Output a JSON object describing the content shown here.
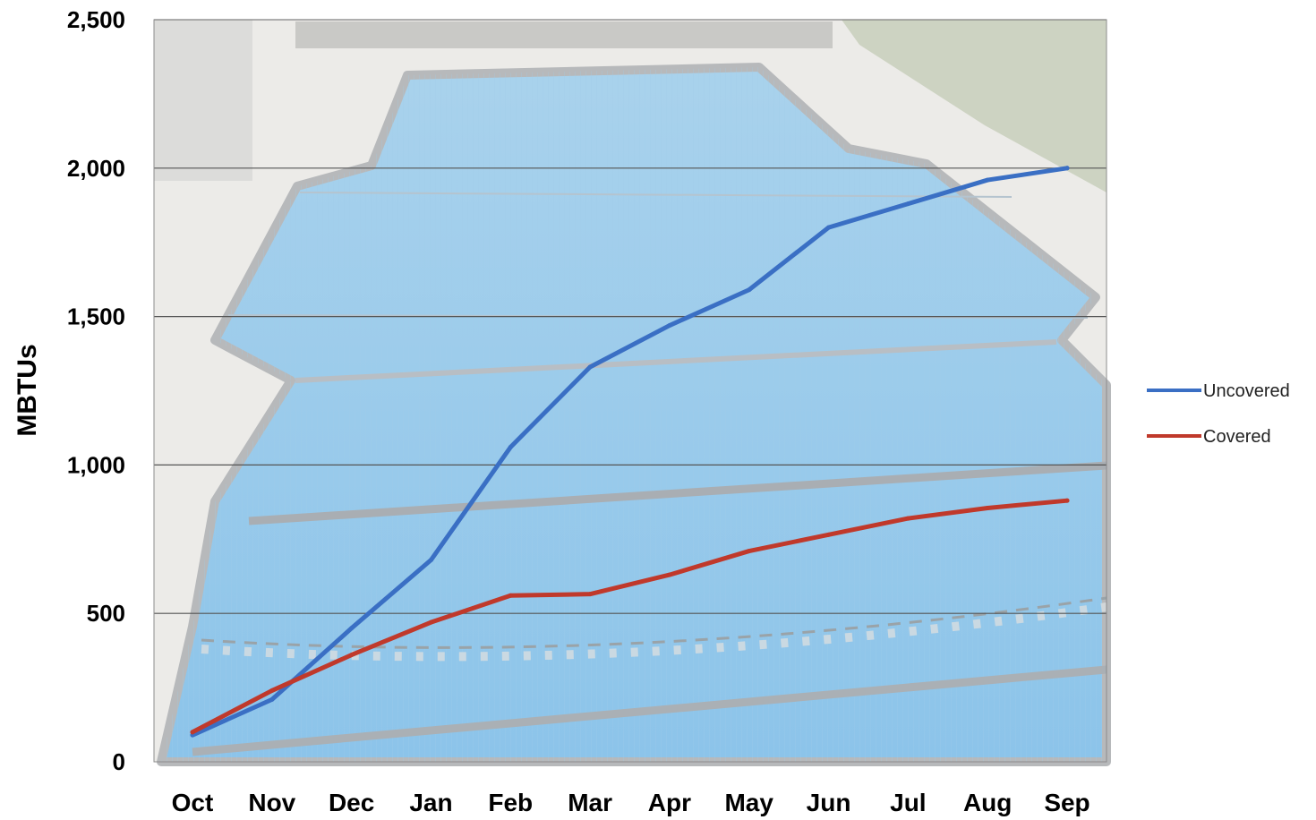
{
  "chart_data": {
    "type": "line",
    "categories": [
      "Oct",
      "Nov",
      "Dec",
      "Jan",
      "Feb",
      "Mar",
      "Apr",
      "May",
      "Jun",
      "Jul",
      "Aug",
      "Sep"
    ],
    "series": [
      {
        "name": "Uncovered",
        "color": "#3a6fc4",
        "values": [
          90,
          210,
          450,
          680,
          1060,
          1330,
          1470,
          1590,
          1800,
          1880,
          1960,
          2000
        ]
      },
      {
        "name": "Covered",
        "color": "#c0392b",
        "values": [
          100,
          240,
          360,
          470,
          560,
          565,
          630,
          710,
          765,
          820,
          855,
          880
        ]
      }
    ],
    "ylabel": "MBTUs",
    "ylim": [
      0,
      2500
    ],
    "yticks": [
      0,
      500,
      1000,
      1500,
      2000,
      2500
    ],
    "ytick_labels": [
      "0",
      "500",
      "1,000",
      "1,500",
      "2,000",
      "2,500"
    ],
    "grid": true,
    "legend_position": "right",
    "background": "pool-cover-photo"
  }
}
